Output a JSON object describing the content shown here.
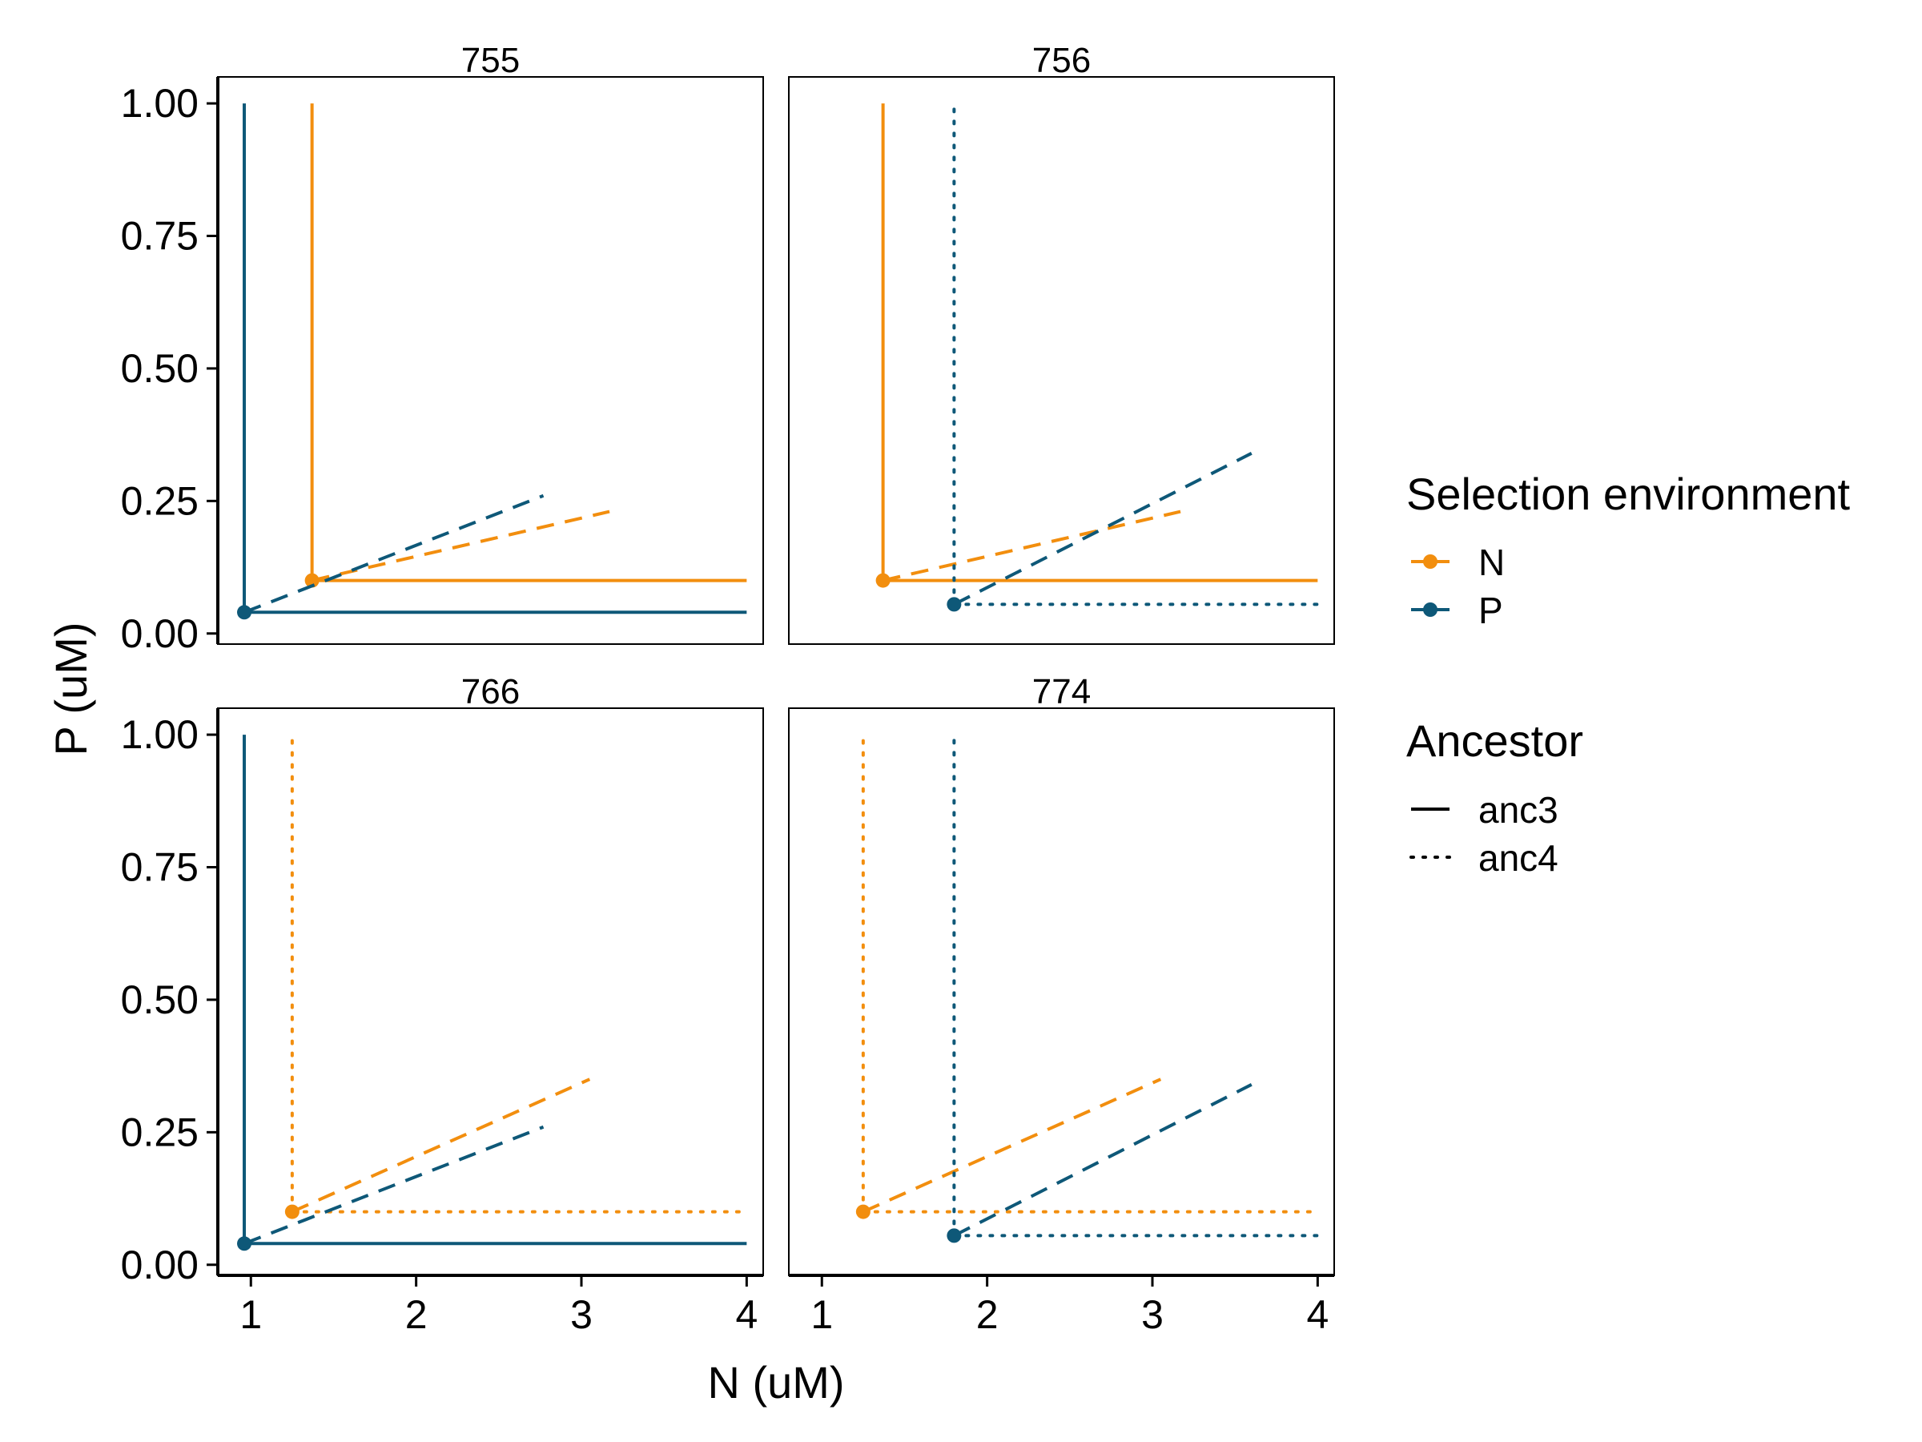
{
  "chart_data": {
    "type": "line",
    "xlabel": "N (uM)",
    "ylabel": "P (uM)",
    "xlim": [
      0.8,
      4.1
    ],
    "ylim": [
      -0.02,
      1.05
    ],
    "x_ticks": [
      1,
      2,
      3,
      4
    ],
    "x_tick_labels": [
      "1",
      "2",
      "3",
      "4"
    ],
    "y_ticks": [
      0,
      0.25,
      0.5,
      0.75,
      1
    ],
    "y_tick_labels": [
      "0.00",
      "0.25",
      "0.50",
      "0.75",
      "1.00"
    ],
    "grid": false,
    "legend_position": "right",
    "colors": {
      "N": "#F28E0E",
      "P": "#0E5878"
    },
    "legend": {
      "selection": {
        "title": "Selection environment",
        "items": [
          {
            "label": "N",
            "key": "N"
          },
          {
            "label": "P",
            "key": "P"
          }
        ]
      },
      "ancestor": {
        "title": "Ancestor",
        "items": [
          {
            "label": "anc3",
            "linetype": "solid"
          },
          {
            "label": "anc4",
            "linetype": "dotted"
          }
        ]
      }
    },
    "panels": [
      {
        "title": "755",
        "series": [
          {
            "env": "N",
            "ancestor": "anc3",
            "corner": [
              1.37,
              0.1
            ],
            "slope_end": [
              3.17,
              0.23
            ]
          },
          {
            "env": "P",
            "ancestor": "anc3",
            "corner": [
              0.96,
              0.04
            ],
            "slope_end": [
              2.77,
              0.26
            ]
          }
        ]
      },
      {
        "title": "756",
        "series": [
          {
            "env": "N",
            "ancestor": "anc3",
            "corner": [
              1.37,
              0.1
            ],
            "slope_end": [
              3.17,
              0.23
            ]
          },
          {
            "env": "P",
            "ancestor": "anc4",
            "corner": [
              1.8,
              0.055
            ],
            "slope_end": [
              3.6,
              0.34
            ]
          }
        ]
      },
      {
        "title": "766",
        "series": [
          {
            "env": "N",
            "ancestor": "anc4",
            "corner": [
              1.25,
              0.1
            ],
            "slope_end": [
              3.05,
              0.35
            ]
          },
          {
            "env": "P",
            "ancestor": "anc3",
            "corner": [
              0.96,
              0.04
            ],
            "slope_end": [
              2.77,
              0.26
            ]
          }
        ]
      },
      {
        "title": "774",
        "series": [
          {
            "env": "N",
            "ancestor": "anc4",
            "corner": [
              1.25,
              0.1
            ],
            "slope_end": [
              3.05,
              0.35
            ]
          },
          {
            "env": "P",
            "ancestor": "anc4",
            "corner": [
              1.8,
              0.055
            ],
            "slope_end": [
              3.6,
              0.34
            ]
          }
        ]
      }
    ],
    "vertical_top": 1.0,
    "horizontal_right": 4.0
  }
}
